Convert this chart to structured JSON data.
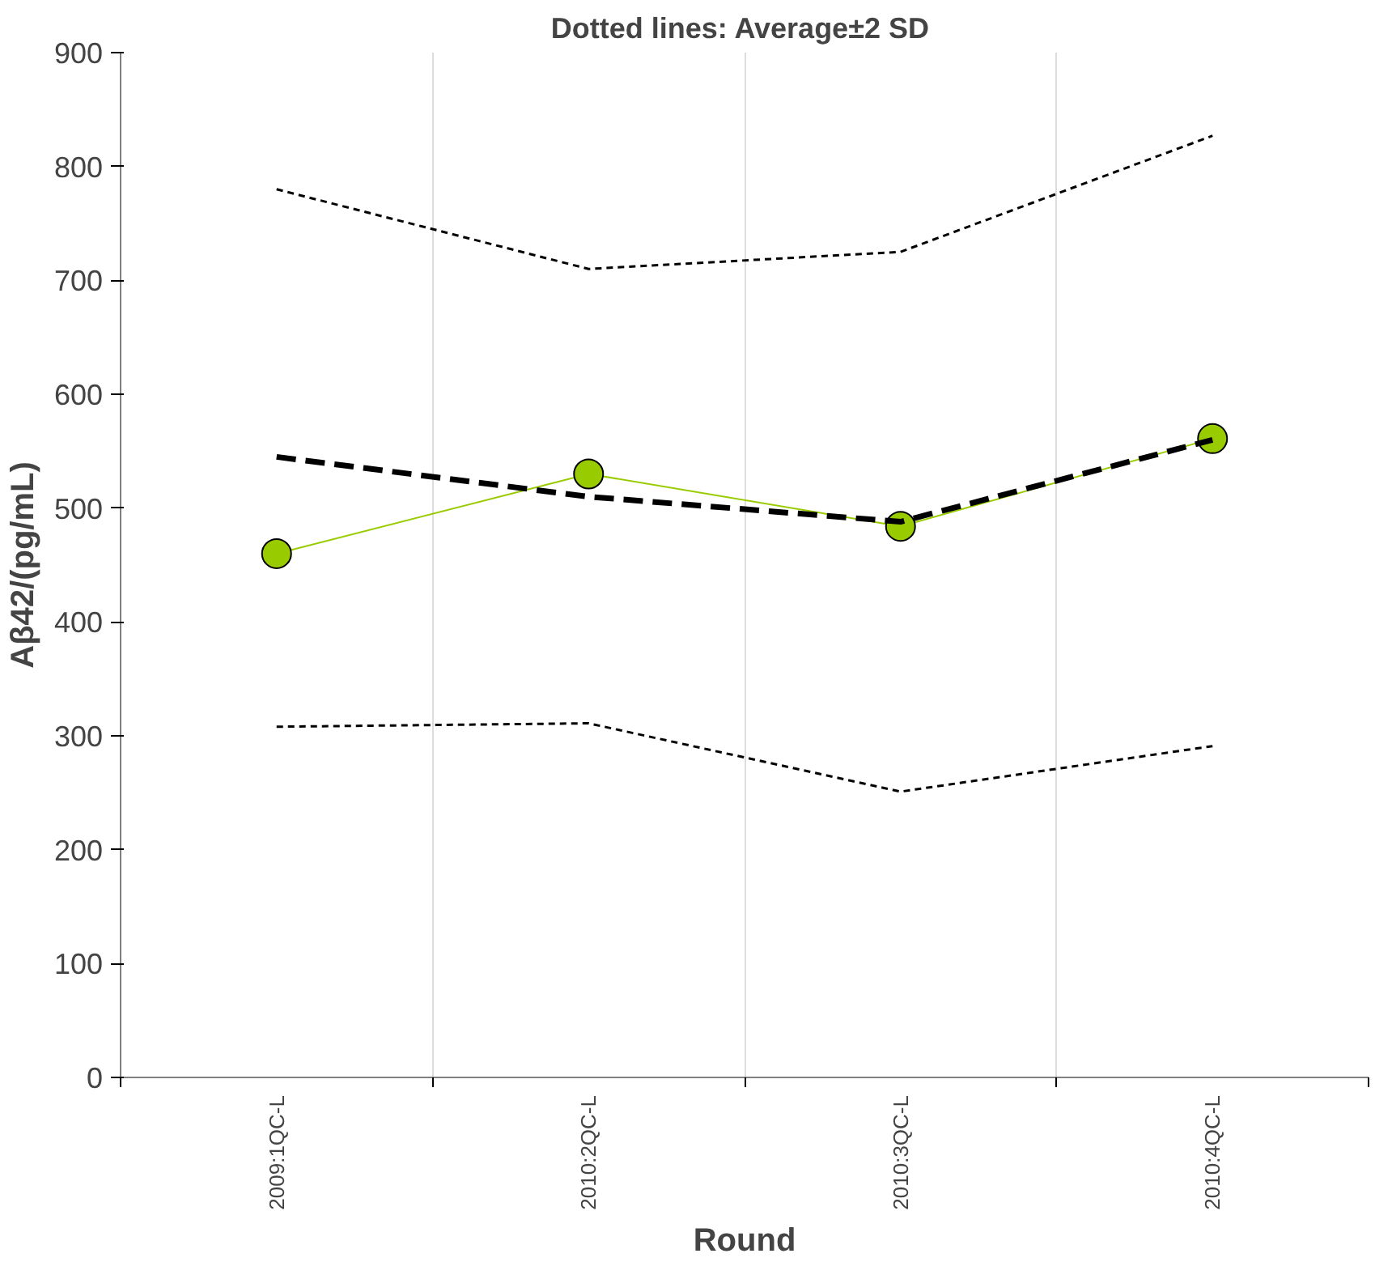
{
  "chart_data": {
    "type": "line",
    "title": "Dotted lines:  Average±2 SD",
    "xlabel": "Round",
    "ylabel": "Aβ42/(pg/mL)",
    "categories": [
      "2009:1QC-L",
      "2010:2QC-L",
      "2010:3QC-L",
      "2010:4QC-L"
    ],
    "series": [
      {
        "color": "#99cc00",
        "values": [
          460,
          530,
          484,
          561
        ],
        "marker": "circle",
        "line_style": "solid"
      },
      {
        "color": "#000000",
        "values": [
          545,
          510,
          488,
          560
        ],
        "marker": "none",
        "line_style": "dashed"
      },
      {
        "color": "#000000",
        "values": [
          780,
          710,
          725,
          827
        ],
        "marker": "none",
        "line_style": "dotted"
      },
      {
        "color": "#000000",
        "values": [
          308,
          311,
          251,
          291
        ],
        "marker": "none",
        "line_style": "dotted"
      }
    ],
    "ylim": [
      0,
      900
    ],
    "yticks": [
      0,
      100,
      200,
      300,
      400,
      500,
      600,
      700,
      800,
      900
    ],
    "grid": "x"
  }
}
